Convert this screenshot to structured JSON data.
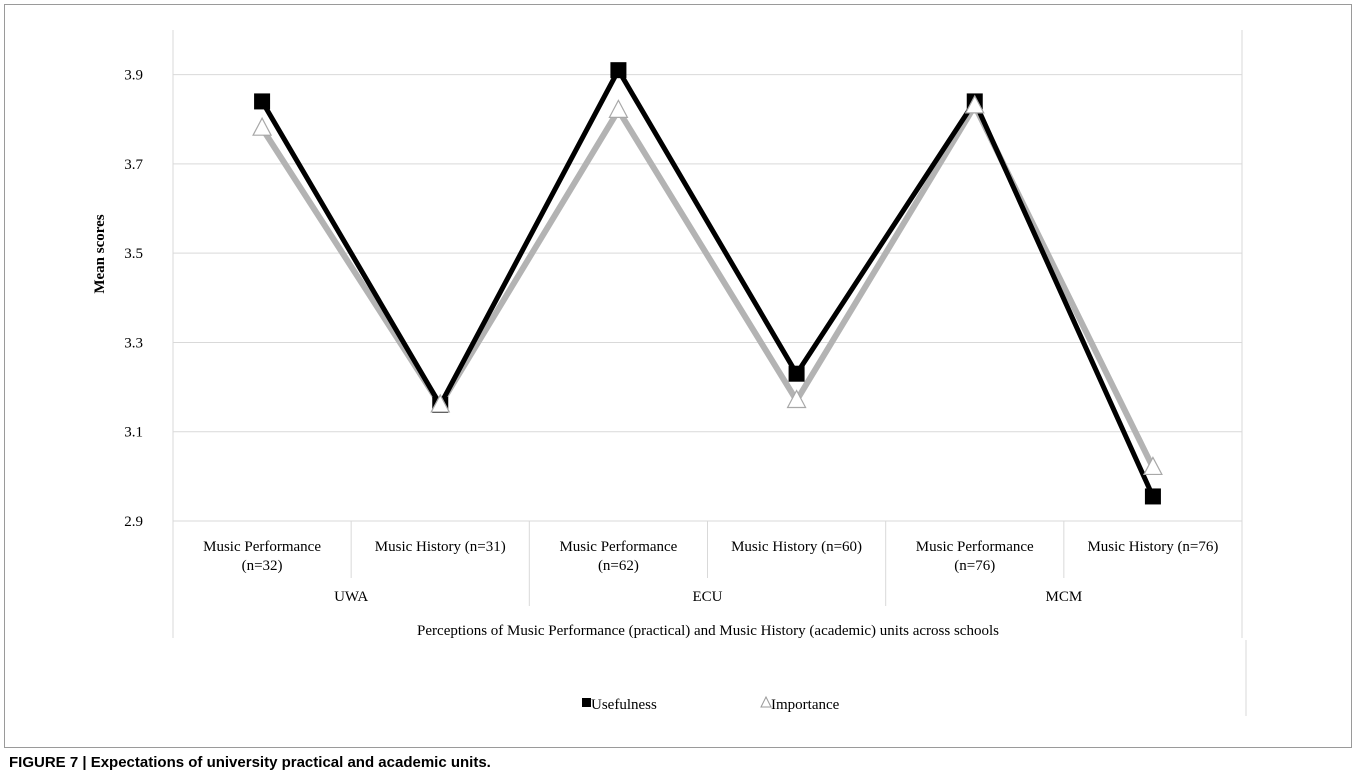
{
  "chart_data": {
    "type": "line",
    "ylabel": "Mean scores",
    "xlabel": "Perceptions of Music Performance (practical) and Music History (academic) units across schools",
    "ylim": [
      2.9,
      4.0
    ],
    "yticks": [
      2.9,
      3.1,
      3.3,
      3.5,
      3.7,
      3.9
    ],
    "grid": true,
    "legend_position": "bottom-center",
    "categories": [
      [
        "Music Performance",
        "(n=32)"
      ],
      [
        "Music History (n=31)"
      ],
      [
        "Music Performance",
        "(n=62)"
      ],
      [
        "Music History (n=60)"
      ],
      [
        "Music Performance",
        "(n=76)"
      ],
      [
        "Music History (n=76)"
      ]
    ],
    "groups": [
      {
        "label": "UWA",
        "span": [
          0,
          1
        ]
      },
      {
        "label": "ECU",
        "span": [
          2,
          3
        ]
      },
      {
        "label": "MCM",
        "span": [
          4,
          5
        ]
      }
    ],
    "series": [
      {
        "name": "Usefulness",
        "color": "#000000",
        "marker": "square",
        "values": [
          3.84,
          3.16,
          3.91,
          3.23,
          3.84,
          2.955
        ]
      },
      {
        "name": "Importance",
        "color": "#b3b3b3",
        "marker": "triangle",
        "values": [
          3.78,
          3.16,
          3.82,
          3.17,
          3.83,
          3.02
        ]
      }
    ]
  },
  "caption": "FIGURE 7 | Expectations of university practical and academic units."
}
